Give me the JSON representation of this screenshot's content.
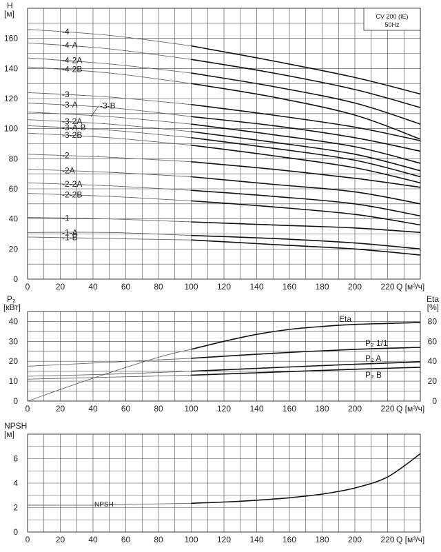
{
  "chart_data": [
    {
      "type": "line",
      "title": "",
      "xlabel": "Q [м³/ч]",
      "ylabel": "H [м]",
      "legend_box": [
        "CV 200 (IE)",
        "50Hz"
      ],
      "xlim": [
        0,
        240
      ],
      "ylim": [
        0,
        180
      ],
      "x_ticks": [
        0,
        20,
        40,
        60,
        80,
        100,
        120,
        140,
        160,
        180,
        200,
        220
      ],
      "y_ticks": [
        0,
        20,
        40,
        60,
        80,
        100,
        120,
        140,
        160
      ],
      "grid": true,
      "series": [
        {
          "name": "-4",
          "x": [
            0,
            50,
            100,
            150,
            200,
            240
          ],
          "y": [
            166,
            162,
            155,
            145,
            134,
            123
          ]
        },
        {
          "name": "-4-A",
          "x": [
            0,
            50,
            100,
            150,
            200,
            240
          ],
          "y": [
            157,
            153,
            146,
            137,
            126,
            114
          ]
        },
        {
          "name": "-4-2A",
          "x": [
            0,
            50,
            100,
            150,
            200,
            240
          ],
          "y": [
            147,
            143,
            137,
            128,
            117,
            103
          ]
        },
        {
          "name": "-4-2B",
          "x": [
            0,
            50,
            100,
            150,
            200,
            240
          ],
          "y": [
            141,
            137,
            130,
            121,
            109,
            93
          ]
        },
        {
          "name": "-3",
          "x": [
            0,
            50,
            100,
            150,
            200,
            240
          ],
          "y": [
            124,
            121,
            116,
            109,
            101,
            92
          ]
        },
        {
          "name": "-3-A",
          "x": [
            0,
            50,
            100,
            150,
            200,
            240
          ],
          "y": [
            117,
            114,
            108,
            102,
            94,
            85
          ]
        },
        {
          "name": "-3-B",
          "x": [
            0,
            50,
            100,
            150,
            200,
            240
          ],
          "y": [
            111,
            108,
            103,
            96,
            88,
            77
          ]
        },
        {
          "name": "-3-2A",
          "x": [
            0,
            50,
            100,
            150,
            200,
            240
          ],
          "y": [
            106,
            103,
            98,
            91,
            83,
            72
          ]
        },
        {
          "name": "-3-A-B",
          "x": [
            0,
            50,
            100,
            150,
            200,
            240
          ],
          "y": [
            102,
            99,
            94,
            87,
            79,
            68
          ]
        },
        {
          "name": "-3-2B",
          "x": [
            0,
            50,
            100,
            150,
            200,
            240
          ],
          "y": [
            97,
            94,
            89,
            82,
            74,
            64
          ]
        },
        {
          "name": "-2",
          "x": [
            0,
            50,
            100,
            150,
            200,
            240
          ],
          "y": [
            83,
            81,
            78,
            73,
            67,
            61
          ]
        },
        {
          "name": "-2A",
          "x": [
            0,
            50,
            100,
            150,
            200,
            240
          ],
          "y": [
            73,
            71,
            68,
            63,
            58,
            50
          ]
        },
        {
          "name": "-2-2A",
          "x": [
            0,
            50,
            100,
            150,
            200,
            240
          ],
          "y": [
            64,
            62,
            59,
            55,
            50,
            42
          ]
        },
        {
          "name": "-2-2B",
          "x": [
            0,
            50,
            100,
            150,
            200,
            240
          ],
          "y": [
            57,
            55,
            52,
            48,
            43,
            36
          ]
        },
        {
          "name": "-1",
          "x": [
            0,
            50,
            100,
            150,
            200,
            240
          ],
          "y": [
            41,
            40,
            38,
            36,
            34,
            31
          ]
        },
        {
          "name": "-1-A",
          "x": [
            0,
            50,
            100,
            150,
            200,
            240
          ],
          "y": [
            31,
            31,
            29,
            27,
            24,
            20
          ]
        },
        {
          "name": "-1-B",
          "x": [
            0,
            50,
            100,
            150,
            200,
            240
          ],
          "y": [
            28,
            27,
            26,
            23,
            20,
            16
          ]
        }
      ]
    },
    {
      "type": "line",
      "title": "",
      "xlabel": "Q [м³/ч]",
      "ylabel": "P₂ [кВт]",
      "ylabel_right": "Eta [%]",
      "xlim": [
        0,
        240
      ],
      "ylim": [
        0,
        45
      ],
      "ylim_right": [
        0,
        90
      ],
      "x_ticks": [
        0,
        20,
        40,
        60,
        80,
        100,
        120,
        140,
        160,
        180,
        200,
        220
      ],
      "y_ticks": [
        0,
        10,
        20,
        30,
        40
      ],
      "y_ticks_right": [
        0,
        20,
        40,
        60,
        80
      ],
      "grid": true,
      "series": [
        {
          "name": "Eta",
          "axis": "right",
          "x": [
            0,
            40,
            80,
            100,
            120,
            140,
            160,
            180,
            200,
            220,
            240
          ],
          "y": [
            0,
            23,
            44,
            52,
            60,
            67,
            72,
            75,
            77,
            78,
            79
          ]
        },
        {
          "name": "P₂ 1/1",
          "x": [
            0,
            50,
            100,
            150,
            200,
            240
          ],
          "y": [
            17.5,
            19.5,
            21.5,
            24,
            26,
            27
          ]
        },
        {
          "name": "P₂ A",
          "x": [
            0,
            50,
            100,
            150,
            200,
            240
          ],
          "y": [
            12.5,
            13.5,
            15,
            16.8,
            18.5,
            19.7
          ]
        },
        {
          "name": "P₂ B",
          "x": [
            0,
            50,
            100,
            150,
            200,
            240
          ],
          "y": [
            11,
            12,
            13,
            14.5,
            16,
            17
          ]
        }
      ]
    },
    {
      "type": "line",
      "title": "",
      "xlabel": "Q [м³/ч]",
      "ylabel": "NPSH [м]",
      "xlim": [
        0,
        240
      ],
      "ylim": [
        0,
        8
      ],
      "x_ticks": [
        0,
        20,
        40,
        60,
        80,
        100,
        120,
        140,
        160,
        180,
        200,
        220
      ],
      "y_ticks": [
        0,
        2,
        4,
        6
      ],
      "grid": true,
      "series": [
        {
          "name": "NPSH",
          "x": [
            0,
            40,
            80,
            100,
            120,
            140,
            160,
            180,
            200,
            220,
            240
          ],
          "y": [
            2.2,
            2.2,
            2.3,
            2.35,
            2.45,
            2.6,
            2.8,
            3.1,
            3.6,
            4.5,
            6.4
          ]
        }
      ]
    }
  ]
}
